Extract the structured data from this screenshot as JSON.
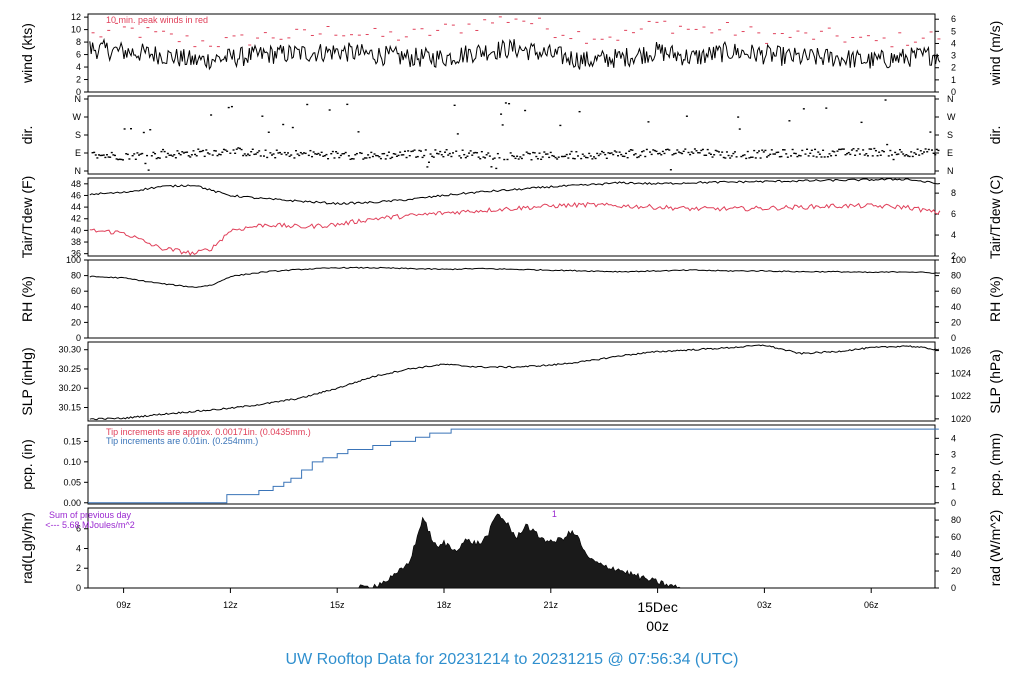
{
  "page_title": "UW Rooftop Data for 20231214  to  20231215 @ 07:56:34  (UTC)",
  "colors": {
    "title": "#2f8fce",
    "peak": "#e0405a",
    "dew": "#e0405a",
    "pcp": "#3a74b8",
    "rad_note": "#9a28d0",
    "date": "#e0405a"
  },
  "x_axis": {
    "ticks": [
      "09z",
      "12z",
      "15z",
      "18z",
      "21z",
      "00z",
      "03z",
      "06z"
    ],
    "date_label": "15Dec",
    "date_time": "00z"
  },
  "chart_data": [
    {
      "type": "line",
      "name": "wind",
      "ylabel": "wind (kts)",
      "ylabel2": "wind (m/s)",
      "yticks": [
        0,
        2,
        4,
        6,
        8,
        10,
        12
      ],
      "yticks2": [
        0,
        1,
        2,
        3,
        4,
        5,
        6
      ],
      "ylim": [
        0,
        12.5
      ],
      "annotation": "10 min. peak winds in red",
      "x_hours": [
        8,
        9,
        10,
        11,
        12,
        13,
        14,
        15,
        16,
        17,
        18,
        19,
        20,
        21,
        22,
        23,
        24,
        25,
        26,
        27,
        28,
        29,
        30,
        31.9
      ],
      "mean": [
        7,
        6.5,
        6,
        5,
        5.5,
        6,
        6.2,
        6.5,
        6,
        5.5,
        5.5,
        6.5,
        7,
        6,
        5,
        5.5,
        6.5,
        5.5,
        6.5,
        6,
        5.5,
        5.5,
        5,
        6
      ],
      "peak": [
        9,
        10,
        9,
        8,
        8,
        9,
        9,
        10,
        9,
        9,
        10,
        11,
        12,
        10,
        9,
        9,
        11,
        10,
        10,
        9,
        9,
        9,
        8,
        9
      ]
    },
    {
      "type": "scatter",
      "name": "dir",
      "ylabel": "dir.",
      "ylabel2": "dir.",
      "yticks": [
        "N",
        "E",
        "S",
        "W",
        "N"
      ],
      "x_hours": [
        8,
        9,
        10,
        11,
        12,
        13,
        14,
        15,
        16,
        17,
        18,
        19,
        20,
        21,
        22,
        23,
        24,
        25,
        26,
        27,
        28,
        29,
        30,
        31.9
      ],
      "degrees": [
        80,
        75,
        80,
        90,
        100,
        85,
        85,
        80,
        75,
        85,
        90,
        80,
        75,
        75,
        80,
        85,
        90,
        100,
        80,
        85,
        90,
        90,
        95,
        90
      ]
    },
    {
      "type": "line",
      "name": "temp",
      "ylabel": "Tair/Tdew (F)",
      "ylabel2": "Tair/Tdew (C)",
      "yticks": [
        36,
        38,
        40,
        42,
        44,
        46,
        48
      ],
      "yticks2": [
        2,
        4,
        6,
        8
      ],
      "ylim": [
        35.6,
        49
      ],
      "x_hours": [
        8,
        9,
        10,
        11,
        11.5,
        12,
        13,
        14,
        15,
        16,
        17,
        18,
        19,
        20,
        21,
        22,
        23,
        24,
        25,
        26,
        27,
        28,
        29,
        30,
        31,
        31.9
      ],
      "tair": [
        46.2,
        46.5,
        47.5,
        47.8,
        46.8,
        46,
        45.4,
        45,
        44.6,
        44.8,
        45.3,
        46,
        46.6,
        47,
        47.5,
        47.8,
        48.2,
        48,
        48.2,
        48.3,
        48.4,
        48.5,
        48.6,
        48.7,
        48.8,
        48
      ],
      "tdew": [
        40,
        39.6,
        37,
        36,
        37,
        40,
        41,
        40.6,
        41,
        42,
        42.5,
        43,
        43.4,
        43.8,
        44.2,
        44.4,
        44.2,
        44,
        43.7,
        43.7,
        43.8,
        44,
        44.2,
        44.2,
        44,
        43
      ]
    },
    {
      "type": "line",
      "name": "rh",
      "ylabel": "RH (%)",
      "ylabel2": "RH (%)",
      "yticks": [
        0,
        20,
        40,
        60,
        80,
        100
      ],
      "ylim": [
        0,
        100
      ],
      "x_hours": [
        8,
        9,
        10,
        11,
        11.5,
        12,
        13,
        14,
        15,
        16,
        17,
        18,
        19,
        20,
        21,
        22,
        23,
        24,
        25,
        26,
        27,
        28,
        29,
        30,
        31,
        31.9
      ],
      "values": [
        79,
        77,
        70,
        65,
        68,
        79,
        85,
        88,
        90,
        90,
        89,
        88,
        89,
        88,
        87,
        86,
        85,
        86,
        87,
        86,
        86,
        85,
        85,
        84,
        85,
        83
      ]
    },
    {
      "type": "line",
      "name": "slp",
      "ylabel": "SLP (inHg)",
      "ylabel2": "SLP (hPa)",
      "yticks": [
        30.15,
        30.2,
        30.25,
        30.3
      ],
      "yticks2": [
        1020,
        1022,
        1024,
        1026
      ],
      "ylim": [
        30.115,
        30.32
      ],
      "x_hours": [
        8,
        9,
        10,
        11,
        12,
        13,
        14,
        15,
        16,
        17,
        18,
        19,
        20,
        21,
        22,
        23,
        24,
        25,
        26,
        27,
        28,
        29,
        30,
        31,
        31.9
      ],
      "values": [
        30.12,
        30.122,
        30.132,
        30.14,
        30.148,
        30.16,
        30.175,
        30.2,
        30.23,
        30.25,
        30.262,
        30.255,
        30.255,
        30.26,
        30.27,
        30.285,
        30.295,
        30.3,
        30.305,
        30.312,
        30.29,
        30.295,
        30.305,
        30.31,
        30.3
      ]
    },
    {
      "type": "line",
      "name": "pcp",
      "ylabel": "pcp. (in)",
      "ylabel2": "pcp. (mm)",
      "yticks": [
        0.0,
        0.05,
        0.1,
        0.15
      ],
      "yticks2": [
        0,
        1,
        2,
        3,
        4
      ],
      "ylim": [
        -0.003,
        0.19
      ],
      "note1": "Tip increments are approx. 0.00171in. (0.0435mm.)",
      "note2": "Tip increments are 0.01in. (0.254mm.)",
      "x_hours": [
        8,
        11.8,
        11.9,
        12.5,
        12.8,
        13.2,
        13.5,
        13.7,
        14,
        14.3,
        14.6,
        15,
        15.3,
        16,
        16.5,
        17.2,
        17.6,
        18.2,
        31.9
      ],
      "values": [
        0,
        0,
        0.02,
        0.02,
        0.03,
        0.04,
        0.05,
        0.06,
        0.08,
        0.1,
        0.11,
        0.12,
        0.13,
        0.14,
        0.15,
        0.16,
        0.17,
        0.18,
        0.18
      ]
    },
    {
      "type": "area",
      "name": "rad",
      "ylabel": "rad(Lgly/hr)",
      "ylabel2": "rad (W/m^2)",
      "yticks": [
        0,
        2,
        4,
        6
      ],
      "yticks2": [
        0,
        20,
        40,
        60,
        80
      ],
      "ylim": [
        0,
        8.1
      ],
      "note": "Sum of previous day",
      "sum": "<--- 5.68 MJoules/m^2",
      "marker": "1",
      "x_hours": [
        15.6,
        16,
        16.3,
        16.6,
        17,
        17.2,
        17.4,
        17.6,
        17.8,
        18,
        18.3,
        18.6,
        19,
        19.2,
        19.5,
        19.8,
        20,
        20.3,
        20.6,
        21,
        21.3,
        21.6,
        21.8,
        22,
        22.4,
        22.8,
        23.2,
        23.6,
        24,
        24.4,
        24.7
      ],
      "values": [
        0,
        0.2,
        0.6,
        1.2,
        2.5,
        4.5,
        7.2,
        5.5,
        4.0,
        4.6,
        3.8,
        4.8,
        4.5,
        5.2,
        7.5,
        6.5,
        5.0,
        6.4,
        5.4,
        4.6,
        5.0,
        5.7,
        4.9,
        3.2,
        2.3,
        2.0,
        1.5,
        1.0,
        0.6,
        0.2,
        0
      ]
    }
  ]
}
